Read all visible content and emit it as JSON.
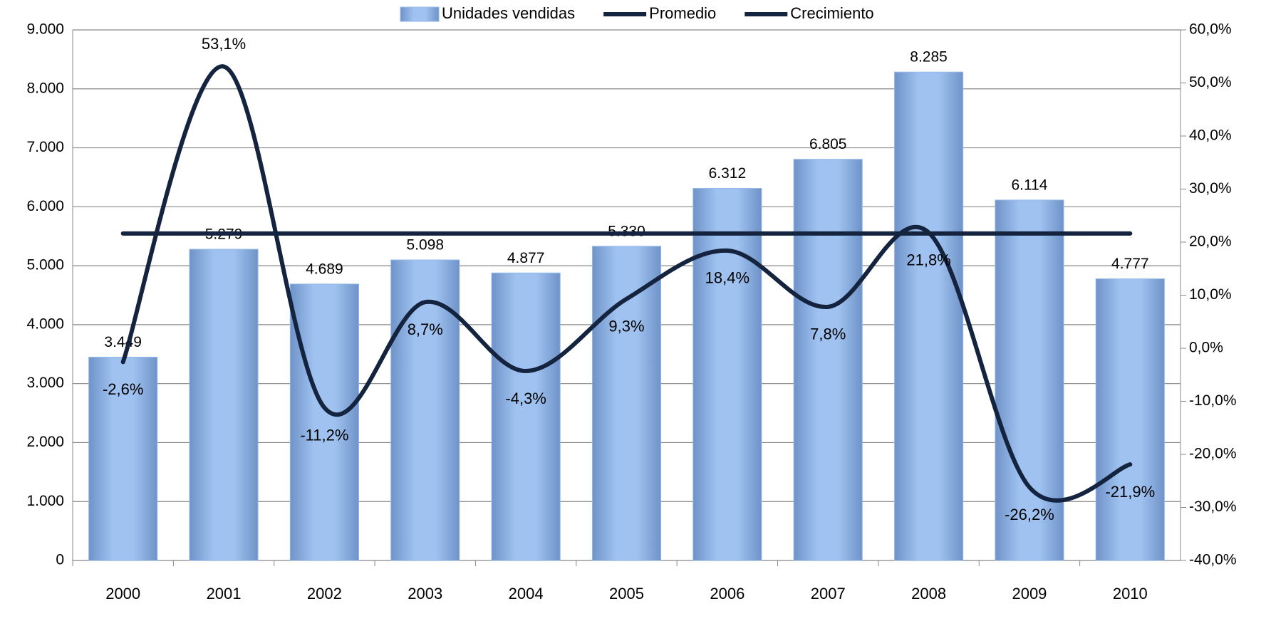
{
  "chart_data": {
    "type": "bar",
    "categories": [
      "2000",
      "2001",
      "2002",
      "2003",
      "2004",
      "2005",
      "2006",
      "2007",
      "2008",
      "2009",
      "2010"
    ],
    "series": [
      {
        "name": "Unidades vendidas",
        "type": "bar",
        "color": "#95b9ea",
        "values": [
          3449,
          5279,
          4689,
          5098,
          4877,
          5330,
          6312,
          6805,
          8285,
          6114,
          4777
        ],
        "value_labels": [
          "3.449",
          "5.279",
          "4.689",
          "5.098",
          "4.877",
          "5.330",
          "6.312",
          "6.805",
          "8.285",
          "6.114",
          "4.777"
        ]
      },
      {
        "name": "Promedio",
        "type": "line",
        "color": "#14243f",
        "values": [
          5547,
          5547,
          5547,
          5547,
          5547,
          5547,
          5547,
          5547,
          5547,
          5547,
          5547
        ]
      },
      {
        "name": "Crecimiento",
        "type": "line",
        "axis": "y2",
        "smooth": true,
        "color": "#14243f",
        "values": [
          -2.6,
          53.1,
          -11.2,
          8.7,
          -4.3,
          9.3,
          18.4,
          7.8,
          21.8,
          -26.2,
          -21.9
        ],
        "value_labels": [
          "-2,6%",
          "53,1%",
          "-11,2%",
          "8,7%",
          "-4,3%",
          "9,3%",
          "18,4%",
          "7,8%",
          "21,8%",
          "-26,2%",
          "-21,9%"
        ]
      }
    ],
    "ylim": [
      0,
      9000
    ],
    "yticks": [
      0,
      {
        "value": 1000,
        "label": "1.000"
      },
      {
        "value": 2000,
        "label": "2.000"
      },
      {
        "value": 3000,
        "label": "3.000"
      },
      {
        "value": 4000,
        "label": "4.000"
      },
      {
        "value": 5000,
        "label": "5.000"
      },
      {
        "value": 6000,
        "label": "6.000"
      },
      {
        "value": 7000,
        "label": "7.000"
      },
      {
        "value": 8000,
        "label": "8.000"
      },
      {
        "value": 9000,
        "label": "9.000"
      }
    ],
    "y2lim": [
      -40,
      60
    ],
    "y2ticks": [
      {
        "value": -40,
        "label": "-40,0%"
      },
      {
        "value": -30,
        "label": "-30,0%"
      },
      {
        "value": -20,
        "label": "-20,0%"
      },
      {
        "value": -10,
        "label": "-10,0%"
      },
      {
        "value": 0,
        "label": "0,0%"
      },
      {
        "value": 10,
        "label": "10,0%"
      },
      {
        "value": 20,
        "label": "20,0%"
      },
      {
        "value": 30,
        "label": "30,0%"
      },
      {
        "value": 40,
        "label": "40,0%"
      },
      {
        "value": 50,
        "label": "50,0%"
      },
      {
        "value": 60,
        "label": "60,0%"
      }
    ],
    "grid": true,
    "legend": "top"
  }
}
